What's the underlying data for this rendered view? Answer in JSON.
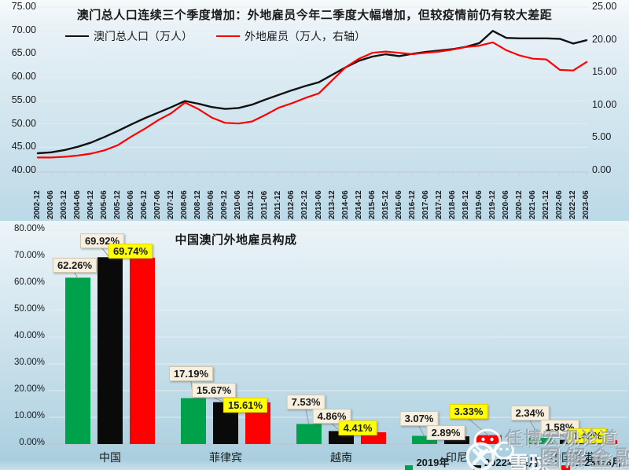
{
  "chart_data": [
    {
      "type": "line",
      "title": "澳门总人口连续三个季度增加：外地雇员今年二季度大幅增加，但较疫情前仍有较大差距",
      "x_labels": [
        "2002-12",
        "2003-06",
        "2003-12",
        "2004-06",
        "2004-12",
        "2005-06",
        "2005-12",
        "2006-06",
        "2006-12",
        "2007-06",
        "2007-12",
        "2008-06",
        "2008-12",
        "2009-06",
        "2009-12",
        "2010-06",
        "2010-12",
        "2011-06",
        "2011-12",
        "2012-06",
        "2012-12",
        "2013-06",
        "2013-12",
        "2014-06",
        "2014-12",
        "2015-06",
        "2015-12",
        "2016-06",
        "2016-12",
        "2017-06",
        "2017-12",
        "2018-06",
        "2018-12",
        "2019-06",
        "2019-12",
        "2020-06",
        "2020-12",
        "2021-06",
        "2021-12",
        "2022-06",
        "2022-12",
        "2023-06"
      ],
      "left_axis": {
        "min": 40,
        "max": 75,
        "ticks": [
          "75.00",
          "70.00",
          "65.00",
          "60.00",
          "55.00",
          "50.00",
          "45.00",
          "40.00"
        ]
      },
      "right_axis": {
        "min": 0,
        "max": 25,
        "ticks": [
          "25.00",
          "20.00",
          "15.00",
          "10.00",
          "5.00",
          "0.00"
        ]
      },
      "grid": true,
      "legend_position": "top-left",
      "series": [
        {
          "name": "澳门总人口（万人）",
          "axis": "left",
          "color": "#111111",
          "values": [
            43.7,
            43.9,
            44.4,
            45.1,
            46.0,
            47.2,
            48.5,
            49.9,
            51.2,
            52.4,
            53.6,
            54.9,
            54.3,
            53.6,
            53.2,
            53.4,
            54.1,
            55.2,
            56.2,
            57.2,
            58.1,
            58.9,
            60.5,
            62.1,
            63.5,
            64.4,
            64.9,
            64.5,
            65.0,
            65.4,
            65.7,
            66.0,
            66.5,
            67.3,
            69.9,
            68.4,
            68.3,
            68.3,
            68.3,
            68.2,
            67.2,
            67.9
          ]
        },
        {
          "name": "外地雇员（万人，右轴）",
          "axis": "right",
          "color": "#fe0000",
          "values": [
            2.0,
            2.0,
            2.1,
            2.3,
            2.6,
            3.1,
            3.9,
            5.2,
            6.4,
            7.7,
            8.8,
            10.4,
            9.4,
            8.1,
            7.3,
            7.2,
            7.5,
            8.5,
            9.6,
            10.3,
            11.1,
            11.8,
            13.8,
            15.8,
            17.1,
            18.0,
            18.2,
            18.0,
            17.8,
            18.0,
            18.2,
            18.5,
            18.9,
            19.1,
            19.6,
            18.4,
            17.6,
            17.1,
            17.0,
            15.4,
            15.3,
            16.6
          ]
        }
      ]
    },
    {
      "type": "bar",
      "title": "中国澳门外地雇员构成",
      "categories": [
        "中国",
        "菲律宾",
        "越南",
        "印尼",
        "中国香港"
      ],
      "y_axis": {
        "min": 0,
        "max": 80,
        "ticks": [
          "80.00%",
          "70.00%",
          "60.00%",
          "50.00%",
          "40.00%",
          "30.00%",
          "20.00%",
          "10.00%",
          "0.00%"
        ]
      },
      "grid": true,
      "legend_position": "top-right",
      "series": [
        {
          "name": "2019年底",
          "color": "#00a14b",
          "label_background": "#f7f0e1",
          "values": [
            62.26,
            17.19,
            7.53,
            3.07,
            2.34
          ],
          "value_labels": [
            "62.26%",
            "17.19%",
            "7.53%",
            "3.07%",
            "2.34%"
          ]
        },
        {
          "name": "2022年12月底",
          "color": "#0a0a0a",
          "label_background": "#f7f0e1",
          "values": [
            69.92,
            15.67,
            4.86,
            2.89,
            1.58
          ],
          "value_labels": [
            "69.92%",
            "15.67%",
            "4.86%",
            "2.89%",
            "1.58%"
          ]
        },
        {
          "name": "2023年6月底",
          "color": "#fe0000",
          "label_background": "#ffff00",
          "values": [
            69.74,
            15.61,
            4.41,
            3.33,
            1.42
          ],
          "value_labels": [
            "69.74%",
            "15.61%",
            "4.41%",
            "3.33%",
            "1.42%"
          ]
        }
      ]
    }
  ],
  "watermark": {
    "site": "雪球·",
    "account_line1": "任博宏观论道",
    "account_line2": "图解金融",
    "icons": [
      "wechat-bubbles-icon",
      "xueqiu-logo-icon"
    ]
  }
}
